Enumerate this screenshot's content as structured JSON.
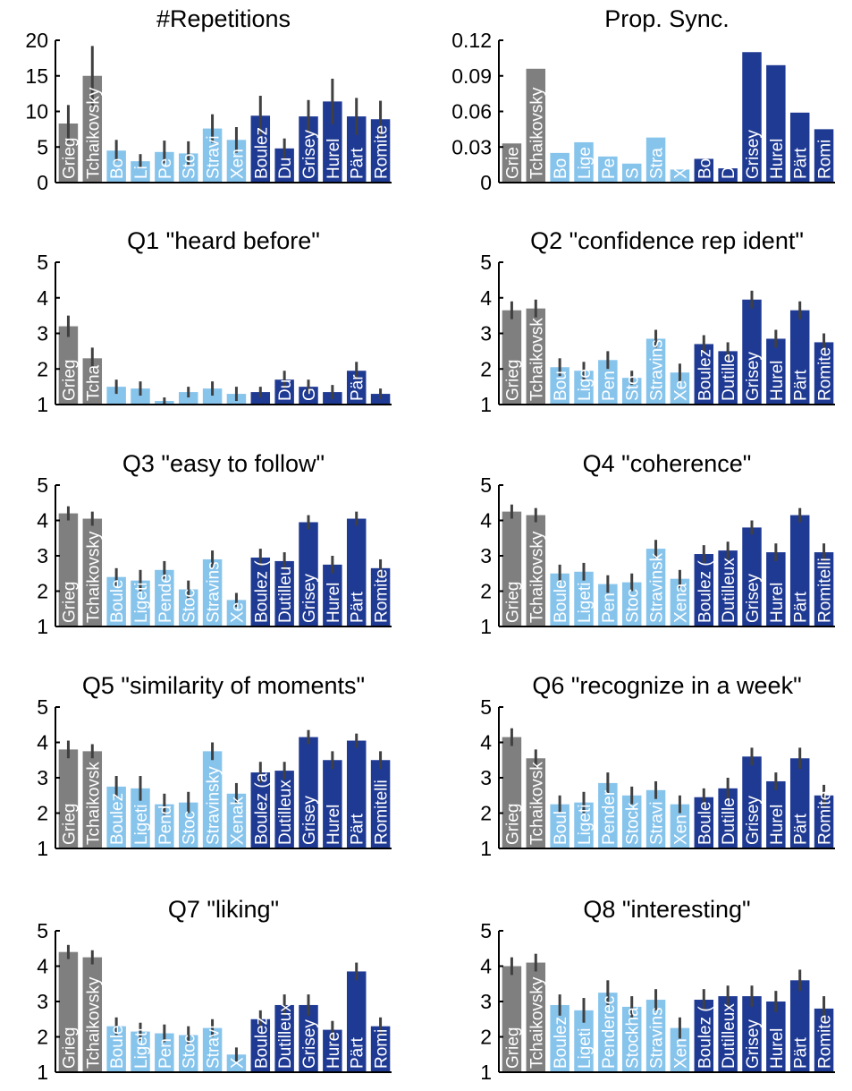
{
  "colors": {
    "familiar": "#7f7f7f",
    "light": "#87c4ec",
    "dark": "#1f3a93",
    "axis": "#000000",
    "errorbar": "#404040",
    "label": "#ffffff"
  },
  "chart_data": [
    {
      "type": "bar",
      "title": "#Repetitions",
      "ylim": [
        0,
        20
      ],
      "yticks": [
        "0",
        "5",
        "10",
        "15",
        "20"
      ],
      "categories": [
        "Grieg",
        "Tchaikovsky",
        "Boulez",
        "Ligeti",
        "Penderecki",
        "Stockhausen",
        "Stravinsky",
        "Xenakis",
        "Boulez",
        "Dutilleux",
        "Grisey",
        "Hurel",
        "Pärt",
        "Romitelli"
      ],
      "bar_labels": [
        "Grieg",
        "Tchaikovsky",
        "Bo",
        "Li",
        "Pe",
        "Sto",
        "Stravi",
        "Xen",
        "Boulez",
        "Du",
        "Grisey",
        "Hurel",
        "Pärt",
        "Romite"
      ],
      "groups": [
        "familiar",
        "familiar",
        "light",
        "light",
        "light",
        "light",
        "light",
        "light",
        "dark",
        "dark",
        "dark",
        "dark",
        "dark",
        "dark"
      ],
      "values": [
        8.3,
        15,
        4.5,
        3,
        4.3,
        4.1,
        7.6,
        6,
        9.4,
        4.8,
        9.3,
        11.4,
        9.3,
        8.9
      ],
      "errors": [
        2.6,
        4.2,
        1.5,
        1,
        1.6,
        1.7,
        2,
        1.8,
        2.8,
        1.4,
        2.3,
        3.2,
        2.6,
        2.6
      ]
    },
    {
      "type": "bar",
      "title": "Prop. Sync.",
      "ylim": [
        0,
        0.12
      ],
      "yticks": [
        "0",
        "0.03",
        "0.06",
        "0.09",
        "0.12"
      ],
      "categories": [
        "Grieg",
        "Tchaikovsky",
        "Boulez",
        "Ligeti",
        "Penderecki",
        "Stockhausen",
        "Stravinsky",
        "Xenakis",
        "Boulez",
        "Dutilleux",
        "Grisey",
        "Hurel",
        "Pärt",
        "Romitelli"
      ],
      "bar_labels": [
        "Grie",
        "Tchaikovsky",
        "Bo",
        "Lige",
        "Pe",
        "S",
        "Stra",
        "X",
        "Bo",
        "D",
        "Grisey",
        "Hurel",
        "Pärt",
        "Romi"
      ],
      "groups": [
        "familiar",
        "familiar",
        "light",
        "light",
        "light",
        "light",
        "light",
        "light",
        "dark",
        "dark",
        "dark",
        "dark",
        "dark",
        "dark"
      ],
      "values": [
        0.033,
        0.096,
        0.025,
        0.034,
        0.022,
        0.016,
        0.038,
        0.011,
        0.02,
        0.012,
        0.11,
        0.099,
        0.059,
        0.045
      ],
      "errors": [
        0,
        0,
        0,
        0,
        0,
        0,
        0,
        0,
        0,
        0,
        0,
        0,
        0,
        0
      ]
    },
    {
      "type": "bar",
      "title": "Q1 \"heard before\"",
      "ylim": [
        1,
        5
      ],
      "yticks": [
        "1",
        "2",
        "3",
        "4",
        "5"
      ],
      "categories": [
        "Grieg",
        "Tchaikovsky",
        "Boulez",
        "Ligeti",
        "Penderecki",
        "Stockhausen",
        "Stravinsky",
        "Xenakis",
        "Boulez",
        "Dutilleux",
        "Grisey",
        "Hurel",
        "Pärt",
        "Romitelli"
      ],
      "bar_labels": [
        "Grieg",
        "Tcha",
        "",
        "",
        "",
        "",
        "",
        "",
        "",
        "Du",
        "G",
        "",
        "Pär",
        ""
      ],
      "groups": [
        "familiar",
        "familiar",
        "light",
        "light",
        "light",
        "light",
        "light",
        "light",
        "dark",
        "dark",
        "dark",
        "dark",
        "dark",
        "dark"
      ],
      "values": [
        3.2,
        2.3,
        1.5,
        1.45,
        1.1,
        1.35,
        1.45,
        1.3,
        1.35,
        1.7,
        1.5,
        1.35,
        1.95,
        1.3
      ],
      "errors": [
        0.3,
        0.3,
        0.2,
        0.2,
        0.1,
        0.15,
        0.2,
        0.2,
        0.15,
        0.25,
        0.2,
        0.2,
        0.25,
        0.15
      ]
    },
    {
      "type": "bar",
      "title": "Q2 \"confidence rep ident\"",
      "ylim": [
        1,
        5
      ],
      "yticks": [
        "1",
        "2",
        "3",
        "4",
        "5"
      ],
      "categories": [
        "Grieg",
        "Tchaikovsky",
        "Boulez",
        "Ligeti",
        "Penderecki",
        "Stockhausen",
        "Stravinsky",
        "Xenakis",
        "Boulez",
        "Dutilleux",
        "Grisey",
        "Hurel",
        "Pärt",
        "Romitelli"
      ],
      "bar_labels": [
        "Grieg",
        "Tchaikovsk",
        "Bou",
        "Lige",
        "Pen",
        "Sto",
        "Stravins",
        "Xe",
        "Boulez",
        "Dutille",
        "Grisey",
        "Hurel",
        "Pärt",
        "Romite"
      ],
      "groups": [
        "familiar",
        "familiar",
        "light",
        "light",
        "light",
        "light",
        "light",
        "light",
        "dark",
        "dark",
        "dark",
        "dark",
        "dark",
        "dark"
      ],
      "values": [
        3.65,
        3.7,
        2.05,
        1.95,
        2.25,
        1.75,
        2.85,
        1.9,
        2.7,
        2.5,
        3.95,
        2.85,
        3.65,
        2.75
      ],
      "errors": [
        0.25,
        0.25,
        0.25,
        0.25,
        0.25,
        0.2,
        0.25,
        0.25,
        0.25,
        0.25,
        0.25,
        0.25,
        0.25,
        0.25
      ]
    },
    {
      "type": "bar",
      "title": "Q3 \"easy to follow\"",
      "ylim": [
        1,
        5
      ],
      "yticks": [
        "1",
        "2",
        "3",
        "4",
        "5"
      ],
      "categories": [
        "Grieg",
        "Tchaikovsky",
        "Boulez",
        "Ligeti",
        "Penderecki",
        "Stockhausen",
        "Stravinsky",
        "Xenakis",
        "Boulez",
        "Dutilleux",
        "Grisey",
        "Hurel",
        "Pärt",
        "Romitelli"
      ],
      "bar_labels": [
        "Grieg",
        "Tchaikovsky",
        "Boule",
        "Ligeti",
        "Pende",
        "Stoc",
        "Stravins",
        "Xe",
        "Boulez (",
        "Dutilleu",
        "Grisey",
        "Hurel",
        "Pärt",
        "Romite"
      ],
      "groups": [
        "familiar",
        "familiar",
        "light",
        "light",
        "light",
        "light",
        "light",
        "light",
        "dark",
        "dark",
        "dark",
        "dark",
        "dark",
        "dark"
      ],
      "values": [
        4.2,
        4.05,
        2.4,
        2.3,
        2.6,
        2.05,
        2.9,
        1.75,
        2.95,
        2.85,
        3.95,
        2.75,
        4.05,
        2.65
      ],
      "errors": [
        0.2,
        0.2,
        0.25,
        0.3,
        0.25,
        0.25,
        0.25,
        0.2,
        0.25,
        0.25,
        0.2,
        0.25,
        0.2,
        0.25
      ]
    },
    {
      "type": "bar",
      "title": "Q4 \"coherence\"",
      "ylim": [
        1,
        5
      ],
      "yticks": [
        "1",
        "2",
        "3",
        "4",
        "5"
      ],
      "categories": [
        "Grieg",
        "Tchaikovsky",
        "Boulez",
        "Ligeti",
        "Penderecki",
        "Stockhausen",
        "Stravinsky",
        "Xenakis",
        "Boulez",
        "Dutilleux",
        "Grisey",
        "Hurel",
        "Pärt",
        "Romitelli"
      ],
      "bar_labels": [
        "Grieg",
        "Tchaikovsky",
        "Boule",
        "Ligeti",
        "Pen",
        "Stoc",
        "Stravinsk",
        "Xena",
        "Boulez (",
        "Dutilleux",
        "Grisey",
        "Hurel",
        "Pärt",
        "Romitelli"
      ],
      "groups": [
        "familiar",
        "familiar",
        "light",
        "light",
        "light",
        "light",
        "light",
        "light",
        "dark",
        "dark",
        "dark",
        "dark",
        "dark",
        "dark"
      ],
      "values": [
        4.25,
        4.15,
        2.5,
        2.55,
        2.2,
        2.25,
        3.2,
        2.35,
        3.05,
        3.15,
        3.8,
        3.1,
        4.15,
        3.1
      ],
      "errors": [
        0.2,
        0.2,
        0.25,
        0.25,
        0.25,
        0.25,
        0.25,
        0.25,
        0.25,
        0.25,
        0.2,
        0.25,
        0.2,
        0.25
      ]
    },
    {
      "type": "bar",
      "title": "Q5 \"similarity of moments\"",
      "ylim": [
        1,
        5
      ],
      "yticks": [
        "1",
        "2",
        "3",
        "4",
        "5"
      ],
      "categories": [
        "Grieg",
        "Tchaikovsky",
        "Boulez",
        "Ligeti",
        "Penderecki",
        "Stockhausen",
        "Stravinsky",
        "Xenakis",
        "Boulez",
        "Dutilleux",
        "Grisey",
        "Hurel",
        "Pärt",
        "Romitelli"
      ],
      "bar_labels": [
        "Grieg",
        "Tchaikovsk",
        "Boulez",
        "Ligeti",
        "Pend",
        "Stoc",
        "Stravinsky",
        "Xenak",
        "Boulez (a",
        "Dutilleux",
        "Grisey",
        "Hurel",
        "Pärt",
        "Romitelli"
      ],
      "groups": [
        "familiar",
        "familiar",
        "light",
        "light",
        "light",
        "light",
        "light",
        "light",
        "dark",
        "dark",
        "dark",
        "dark",
        "dark",
        "dark"
      ],
      "values": [
        3.8,
        3.75,
        2.75,
        2.7,
        2.25,
        2.3,
        3.75,
        2.55,
        3.15,
        3.2,
        4.15,
        3.5,
        4.05,
        3.5
      ],
      "errors": [
        0.25,
        0.2,
        0.3,
        0.35,
        0.3,
        0.3,
        0.25,
        0.3,
        0.3,
        0.25,
        0.2,
        0.25,
        0.2,
        0.25
      ]
    },
    {
      "type": "bar",
      "title": "Q6 \"recognize in a week\"",
      "ylim": [
        1,
        5
      ],
      "yticks": [
        "1",
        "2",
        "3",
        "4",
        "5"
      ],
      "categories": [
        "Grieg",
        "Tchaikovsky",
        "Boulez",
        "Ligeti",
        "Penderecki",
        "Stockhausen",
        "Stravinsky",
        "Xenakis",
        "Boulez",
        "Dutilleux",
        "Grisey",
        "Hurel",
        "Pärt",
        "Romitelli"
      ],
      "bar_labels": [
        "Grieg",
        "Tchaikovsk",
        "Boul",
        "Ligeti",
        "Pender",
        "Stock",
        "Stravi",
        "Xen",
        "Boule",
        "Dutille",
        "Grisey",
        "Hurel",
        "Pärt",
        "Romite"
      ],
      "groups": [
        "familiar",
        "familiar",
        "light",
        "light",
        "light",
        "light",
        "light",
        "light",
        "dark",
        "dark",
        "dark",
        "dark",
        "dark",
        "dark"
      ],
      "values": [
        4.15,
        3.55,
        2.25,
        2.3,
        2.85,
        2.5,
        2.65,
        2.25,
        2.45,
        2.7,
        3.6,
        2.9,
        3.55,
        2.5
      ],
      "errors": [
        0.25,
        0.25,
        0.25,
        0.3,
        0.3,
        0.25,
        0.25,
        0.25,
        0.25,
        0.3,
        0.25,
        0.25,
        0.3,
        0.3
      ]
    },
    {
      "type": "bar",
      "title": "Q7 \"liking\"",
      "ylim": [
        1,
        5
      ],
      "yticks": [
        "1",
        "2",
        "3",
        "4",
        "5"
      ],
      "categories": [
        "Grieg",
        "Tchaikovsky",
        "Boulez",
        "Ligeti",
        "Penderecki",
        "Stockhausen",
        "Stravinsky",
        "Xenakis",
        "Boulez",
        "Dutilleux",
        "Grisey",
        "Hurel",
        "Pärt",
        "Romitelli"
      ],
      "bar_labels": [
        "Grieg",
        "Tchaikovsky",
        "Boule",
        "Ligeti",
        "Pen",
        "Stoc",
        "Stravi",
        "X",
        "Boulez",
        "Dutilleux",
        "Grisey",
        "Hure",
        "Pärt",
        "Romi"
      ],
      "groups": [
        "familiar",
        "familiar",
        "light",
        "light",
        "light",
        "light",
        "light",
        "light",
        "dark",
        "dark",
        "dark",
        "dark",
        "dark",
        "dark"
      ],
      "values": [
        4.4,
        4.25,
        2.3,
        2.15,
        2.1,
        2.05,
        2.25,
        1.5,
        2.5,
        2.9,
        2.9,
        2.2,
        3.85,
        2.3
      ],
      "errors": [
        0.2,
        0.2,
        0.25,
        0.25,
        0.25,
        0.25,
        0.25,
        0.2,
        0.25,
        0.3,
        0.3,
        0.25,
        0.25,
        0.25
      ]
    },
    {
      "type": "bar",
      "title": "Q8 \"interesting\"",
      "ylim": [
        1,
        5
      ],
      "yticks": [
        "1",
        "2",
        "3",
        "4",
        "5"
      ],
      "categories": [
        "Grieg",
        "Tchaikovsky",
        "Boulez",
        "Ligeti",
        "Penderecki",
        "Stockhausen",
        "Stravinsky",
        "Xenakis",
        "Boulez",
        "Dutilleux",
        "Grisey",
        "Hurel",
        "Pärt",
        "Romitelli"
      ],
      "bar_labels": [
        "Grieg",
        "Tchaikovsky",
        "Boulez",
        "Ligeti",
        "Penderec",
        "Stockha",
        "Stravins",
        "Xen",
        "Boulez (",
        "Dutilleux",
        "Grisey",
        "Hurel",
        "Pärt",
        "Romite"
      ],
      "groups": [
        "familiar",
        "familiar",
        "light",
        "light",
        "light",
        "light",
        "light",
        "light",
        "dark",
        "dark",
        "dark",
        "dark",
        "dark",
        "dark"
      ],
      "values": [
        4.0,
        4.1,
        2.9,
        2.75,
        3.25,
        2.85,
        3.05,
        2.25,
        3.05,
        3.15,
        3.15,
        3.0,
        3.6,
        2.8
      ],
      "errors": [
        0.25,
        0.25,
        0.3,
        0.35,
        0.35,
        0.3,
        0.3,
        0.3,
        0.3,
        0.3,
        0.3,
        0.3,
        0.3,
        0.35
      ]
    }
  ]
}
